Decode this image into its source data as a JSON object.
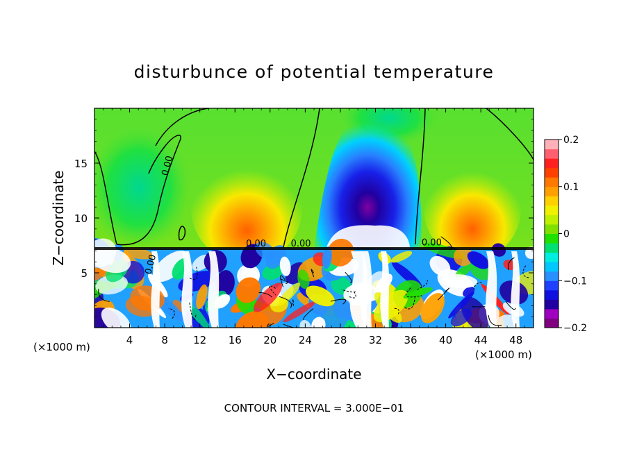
{
  "chart_data": {
    "type": "heatmap",
    "title": "disturbunce of potential temperature",
    "xlabel": "X−coordinate",
    "ylabel": "Z−coordinate",
    "x_unit_left": "(×1000 m)",
    "x_unit_right": "(×1000 m)",
    "footer": "CONTOUR INTERVAL = 3.000E−01",
    "xlim": [
      0,
      50
    ],
    "ylim": [
      0,
      20
    ],
    "x_ticks": [
      4,
      8,
      12,
      16,
      20,
      24,
      28,
      32,
      36,
      40,
      44,
      48
    ],
    "x_tick_labels": [
      "4",
      "8",
      "12",
      "16",
      "20",
      "24",
      "28",
      "32",
      "36",
      "40",
      "44",
      "48"
    ],
    "y_ticks": [
      5,
      10,
      15
    ],
    "y_tick_labels": [
      "5",
      "10",
      "15"
    ],
    "colorbar": {
      "range": [
        -0.2,
        0.2
      ],
      "tick_values": [
        0.2,
        0.1,
        0,
        -0.1,
        -0.2
      ],
      "tick_labels": [
        "0.2",
        "0.1",
        "0",
        "−0.1",
        "−0.2"
      ],
      "colors": [
        "#800080",
        "#a000c0",
        "#2000a0",
        "#1010e0",
        "#2040ff",
        "#2890ff",
        "#00c8ff",
        "#00eee0",
        "#00e070",
        "#20e000",
        "#80e000",
        "#c0f000",
        "#f0f000",
        "#ffd000",
        "#ffa000",
        "#ff7800",
        "#ff4000",
        "#ff2020",
        "#ff6070",
        "#ffb0b8"
      ]
    },
    "contour_labels": [
      {
        "text": "0.00",
        "x": 8.6,
        "y": 14.7
      },
      {
        "text": "0.00",
        "x": 6.7,
        "y": 5.7
      },
      {
        "text": "0.00",
        "x": 18.4,
        "y": 7.4
      },
      {
        "text": "0.00",
        "x": 23.5,
        "y": 7.4
      },
      {
        "text": "0.00",
        "x": 38.4,
        "y": 7.5
      }
    ],
    "features": [
      {
        "kind": "cold anomaly",
        "x": 31.5,
        "y": 11.5,
        "value": -0.2
      },
      {
        "kind": "warm anomaly",
        "x": 19.0,
        "y": 9.5,
        "value": 0.12
      },
      {
        "kind": "warm anomaly",
        "x": 43.0,
        "y": 10.5,
        "value": 0.12
      }
    ]
  }
}
